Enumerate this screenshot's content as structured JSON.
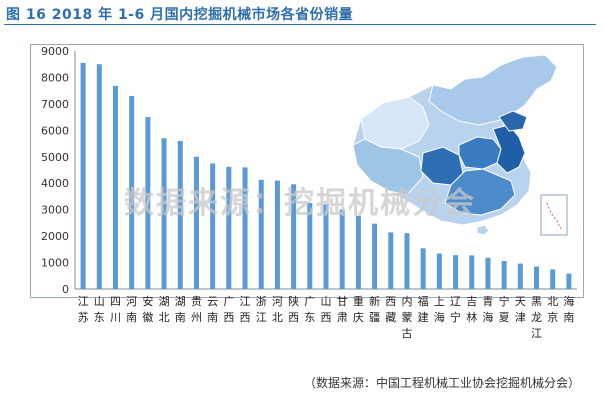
{
  "title": "图 16    2018 年 1-6 月国内挖掘机械市场各省份销量",
  "source": "（数据来源：中国工程机械工业协会挖掘机械分会）",
  "watermark": "数据来源：挖掘机械分会",
  "colors": {
    "bar": "#5b9bd5",
    "title": "#2f6fae",
    "map_dark": "#2e6fb4",
    "map_light": "#9ec4e6"
  },
  "chart_data": {
    "type": "bar",
    "title": "",
    "xlabel": "",
    "ylabel": "",
    "ylim": [
      0,
      9000
    ],
    "yticks": [
      0,
      1000,
      2000,
      3000,
      4000,
      5000,
      6000,
      7000,
      8000,
      9000
    ],
    "grid": false,
    "categories": [
      "江苏",
      "山东",
      "四川",
      "河南",
      "安徽",
      "湖北",
      "湖南",
      "贵州",
      "云南",
      "广西",
      "江西",
      "浙江",
      "河北",
      "陕西",
      "广东",
      "山西",
      "甘肃",
      "重庆",
      "新疆",
      "西藏",
      "内蒙古",
      "福建",
      "上海",
      "辽宁",
      "吉林",
      "青海",
      "宁夏",
      "天津",
      "黑龙江",
      "北京",
      "海南"
    ],
    "values": [
      8550,
      8500,
      7680,
      7300,
      6500,
      5700,
      5600,
      5000,
      4750,
      4620,
      4600,
      4130,
      4100,
      3960,
      3250,
      3200,
      3000,
      2770,
      2470,
      2140,
      2110,
      1540,
      1340,
      1280,
      1270,
      1180,
      1060,
      960,
      850,
      740,
      580
    ]
  }
}
